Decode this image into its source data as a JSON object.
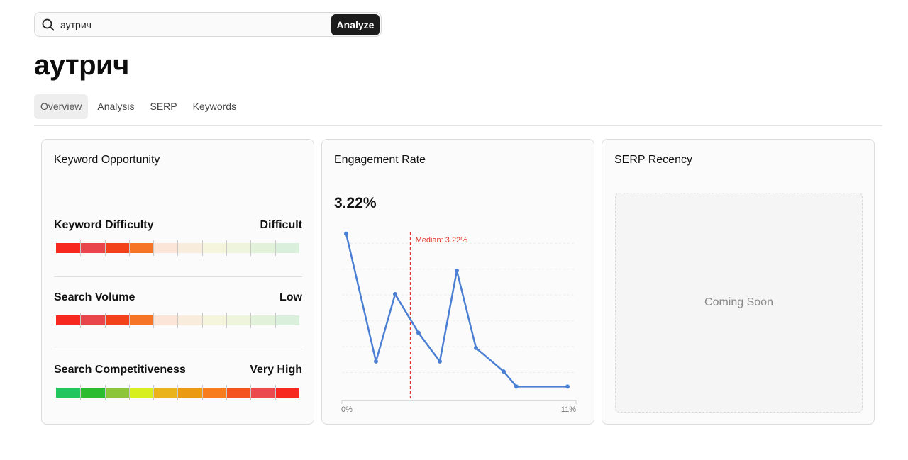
{
  "search": {
    "value": "аутрич",
    "button_label": "Analyze",
    "icon": "search-icon"
  },
  "page_title": "аутрич",
  "tabs": [
    {
      "label": "Overview",
      "active": true
    },
    {
      "label": "Analysis",
      "active": false
    },
    {
      "label": "SERP",
      "active": false
    },
    {
      "label": "Keywords",
      "active": false
    }
  ],
  "keyword_opportunity": {
    "title": "Keyword Opportunity",
    "metrics": [
      {
        "label": "Keyword Difficulty",
        "value": "Difficult",
        "segment_colors": [
          "#f7281f",
          "#e8464b",
          "#f3421b",
          "#f57426",
          "#fbe5d8",
          "#f8ecdc",
          "#f4f5dc",
          "#eef5dc",
          "#e2f2da",
          "#dbf0dc"
        ]
      },
      {
        "label": "Search Volume",
        "value": "Low",
        "segment_colors": [
          "#f7281f",
          "#e8464b",
          "#f3421b",
          "#f57426",
          "#fbe5d8",
          "#f8ecdc",
          "#f4f5dc",
          "#eef5dc",
          "#e2f2da",
          "#dbf0dc"
        ]
      },
      {
        "label": "Search Competitiveness",
        "value": "Very High",
        "segment_colors": [
          "#22c55e",
          "#2bbd2f",
          "#8cc43a",
          "#d8ef1f",
          "#eab21b",
          "#eb9a14",
          "#f77c1d",
          "#f4531f",
          "#eb4b4e",
          "#f7281f"
        ]
      }
    ]
  },
  "engagement_rate": {
    "title": "Engagement Rate",
    "value": "3.22%",
    "median_label": "Median: 3.22%",
    "line_color": "#4a7fd4",
    "median_color": "#e0342b"
  },
  "serp_recency": {
    "title": "SERP Recency",
    "placeholder": "Coming Soon"
  },
  "chart_data": {
    "type": "line",
    "title": "Engagement Rate",
    "xlabel": "",
    "ylabel": "",
    "x_tick_labels": [
      "0%",
      "11%"
    ],
    "xlim": [
      0,
      11
    ],
    "ylim": [
      0,
      1
    ],
    "grid": true,
    "median": {
      "x": 3.22,
      "label": "Median: 3.22%"
    },
    "series": [
      {
        "x": [
          0.2,
          1.6,
          2.5,
          3.6,
          4.6,
          5.4,
          6.3,
          7.6,
          8.2,
          10.6
        ],
        "y": [
          0.98,
          0.22,
          0.62,
          0.39,
          0.22,
          0.76,
          0.3,
          0.16,
          0.07,
          0.07
        ]
      }
    ]
  }
}
